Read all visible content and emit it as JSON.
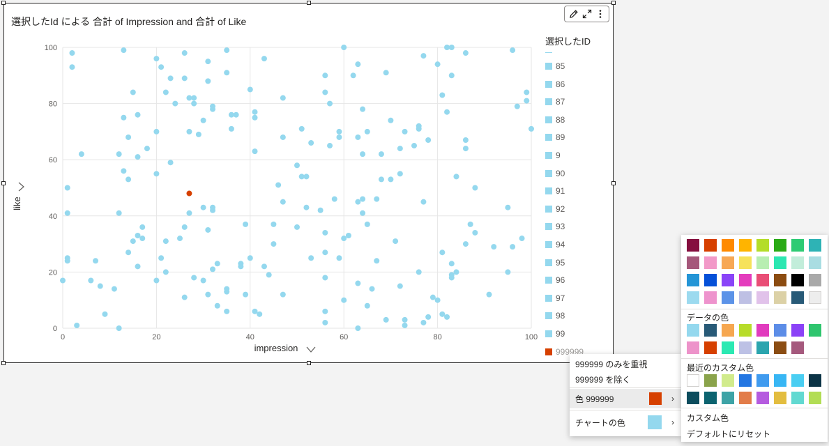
{
  "visual": {
    "title": "選択したId による 合計 of Impression and 合計 of Like",
    "toolbar": {
      "edit_icon": "pencil-icon",
      "focus_icon": "expand-icon",
      "more_icon": "more-icon"
    }
  },
  "axes": {
    "x_title": "impression",
    "y_title": "like",
    "x_ticks": [
      "0",
      "20",
      "40",
      "60",
      "80",
      "100"
    ],
    "y_ticks": [
      "0",
      "20",
      "40",
      "60",
      "80",
      "100"
    ]
  },
  "chart_data": {
    "type": "scatter",
    "title": "選択したId による 合計 of Impression and 合計 of Like",
    "xlabel": "impression",
    "ylabel": "like",
    "xlim": [
      0,
      100
    ],
    "ylim": [
      0,
      100
    ],
    "grid": true,
    "legend_position": "right",
    "default_color": "#94D8EE",
    "highlight_color": "#D64000",
    "highlight_point": {
      "x": 27,
      "y": 48
    },
    "points": [
      [
        0,
        17
      ],
      [
        1,
        50
      ],
      [
        1,
        41
      ],
      [
        1,
        25
      ],
      [
        1,
        24
      ],
      [
        2,
        98
      ],
      [
        2,
        93
      ],
      [
        3,
        1
      ],
      [
        4,
        62
      ],
      [
        6,
        17
      ],
      [
        7,
        24
      ],
      [
        8,
        15
      ],
      [
        9,
        5
      ],
      [
        11,
        14
      ],
      [
        12,
        62
      ],
      [
        12,
        41
      ],
      [
        12,
        0
      ],
      [
        13,
        99
      ],
      [
        13,
        75
      ],
      [
        13,
        56
      ],
      [
        14,
        68
      ],
      [
        14,
        53
      ],
      [
        14,
        27
      ],
      [
        15,
        84
      ],
      [
        15,
        31
      ],
      [
        16,
        76
      ],
      [
        16,
        61
      ],
      [
        16,
        33
      ],
      [
        16,
        22
      ],
      [
        17,
        36
      ],
      [
        17,
        32
      ],
      [
        18,
        64
      ],
      [
        20,
        96
      ],
      [
        20,
        70
      ],
      [
        20,
        55
      ],
      [
        20,
        17
      ],
      [
        21,
        93
      ],
      [
        21,
        25
      ],
      [
        22,
        84
      ],
      [
        22,
        31
      ],
      [
        22,
        20
      ],
      [
        23,
        89
      ],
      [
        23,
        59
      ],
      [
        24,
        80
      ],
      [
        25,
        32
      ],
      [
        26,
        98
      ],
      [
        26,
        89
      ],
      [
        26,
        36
      ],
      [
        26,
        11
      ],
      [
        27,
        82
      ],
      [
        27,
        70
      ],
      [
        27,
        41
      ],
      [
        28,
        82
      ],
      [
        28,
        80
      ],
      [
        28,
        18
      ],
      [
        29,
        69
      ],
      [
        30,
        74
      ],
      [
        30,
        43
      ],
      [
        30,
        17
      ],
      [
        31,
        95
      ],
      [
        31,
        88
      ],
      [
        31,
        35
      ],
      [
        31,
        12
      ],
      [
        32,
        79
      ],
      [
        32,
        78
      ],
      [
        32,
        43
      ],
      [
        32,
        42
      ],
      [
        32,
        21
      ],
      [
        33,
        23
      ],
      [
        33,
        8
      ],
      [
        35,
        99
      ],
      [
        35,
        91
      ],
      [
        35,
        14
      ],
      [
        35,
        13
      ],
      [
        35,
        6
      ],
      [
        36,
        76
      ],
      [
        36,
        71
      ],
      [
        37,
        76
      ],
      [
        38,
        23
      ],
      [
        38,
        22
      ],
      [
        39,
        37
      ],
      [
        39,
        12
      ],
      [
        40,
        85
      ],
      [
        40,
        25
      ],
      [
        41,
        77
      ],
      [
        41,
        75
      ],
      [
        41,
        63
      ],
      [
        41,
        6
      ],
      [
        42,
        5
      ],
      [
        43,
        96
      ],
      [
        43,
        22
      ],
      [
        44,
        19
      ],
      [
        45,
        37
      ],
      [
        45,
        30
      ],
      [
        46,
        51
      ],
      [
        47,
        82
      ],
      [
        47,
        68
      ],
      [
        47,
        45
      ],
      [
        47,
        12
      ],
      [
        50,
        58
      ],
      [
        50,
        36
      ],
      [
        51,
        71
      ],
      [
        51,
        54
      ],
      [
        52,
        54
      ],
      [
        52,
        43
      ],
      [
        53,
        66
      ],
      [
        53,
        25
      ],
      [
        55,
        42
      ],
      [
        56,
        90
      ],
      [
        56,
        84
      ],
      [
        56,
        34
      ],
      [
        56,
        27
      ],
      [
        56,
        18
      ],
      [
        56,
        6
      ],
      [
        56,
        2
      ],
      [
        57,
        80
      ],
      [
        57,
        65
      ],
      [
        58,
        46
      ],
      [
        59,
        70
      ],
      [
        59,
        68
      ],
      [
        59,
        25
      ],
      [
        60,
        100
      ],
      [
        60,
        32
      ],
      [
        60,
        10
      ],
      [
        61,
        33
      ],
      [
        62,
        90
      ],
      [
        63,
        94
      ],
      [
        63,
        68
      ],
      [
        63,
        45
      ],
      [
        63,
        16
      ],
      [
        63,
        0
      ],
      [
        64,
        78
      ],
      [
        64,
        62
      ],
      [
        64,
        46
      ],
      [
        64,
        41
      ],
      [
        65,
        70
      ],
      [
        65,
        37
      ],
      [
        65,
        8
      ],
      [
        66,
        14
      ],
      [
        67,
        46
      ],
      [
        67,
        24
      ],
      [
        68,
        62
      ],
      [
        68,
        53
      ],
      [
        69,
        91
      ],
      [
        69,
        3
      ],
      [
        70,
        74
      ],
      [
        70,
        53
      ],
      [
        71,
        31
      ],
      [
        72,
        64
      ],
      [
        72,
        55
      ],
      [
        72,
        15
      ],
      [
        73,
        70
      ],
      [
        73,
        3
      ],
      [
        73,
        1
      ],
      [
        75,
        65
      ],
      [
        76,
        72
      ],
      [
        76,
        71
      ],
      [
        76,
        20
      ],
      [
        77,
        97
      ],
      [
        77,
        45
      ],
      [
        77,
        2
      ],
      [
        78,
        67
      ],
      [
        78,
        4
      ],
      [
        79,
        11
      ],
      [
        80,
        94
      ],
      [
        80,
        10
      ],
      [
        81,
        83
      ],
      [
        81,
        27
      ],
      [
        81,
        5
      ],
      [
        82,
        100
      ],
      [
        82,
        77
      ],
      [
        82,
        4
      ],
      [
        83,
        100
      ],
      [
        83,
        90
      ],
      [
        83,
        23
      ],
      [
        83,
        19
      ],
      [
        83,
        18
      ],
      [
        84,
        54
      ],
      [
        84,
        20
      ],
      [
        86,
        98
      ],
      [
        86,
        67
      ],
      [
        86,
        64
      ],
      [
        86,
        30
      ],
      [
        87,
        37
      ],
      [
        88,
        50
      ],
      [
        88,
        34
      ],
      [
        91,
        12
      ],
      [
        92,
        29
      ],
      [
        95,
        43
      ],
      [
        95,
        20
      ],
      [
        96,
        99
      ],
      [
        96,
        29
      ],
      [
        97,
        79
      ],
      [
        98,
        32
      ],
      [
        99,
        84
      ],
      [
        99,
        81
      ],
      [
        100,
        71
      ]
    ]
  },
  "legend": {
    "title": "選択したID",
    "items": [
      {
        "label": "85",
        "color": "#94D8EE"
      },
      {
        "label": "86",
        "color": "#94D8EE"
      },
      {
        "label": "87",
        "color": "#94D8EE"
      },
      {
        "label": "88",
        "color": "#94D8EE"
      },
      {
        "label": "89",
        "color": "#94D8EE"
      },
      {
        "label": "9",
        "color": "#94D8EE"
      },
      {
        "label": "90",
        "color": "#94D8EE"
      },
      {
        "label": "91",
        "color": "#94D8EE"
      },
      {
        "label": "92",
        "color": "#94D8EE"
      },
      {
        "label": "93",
        "color": "#94D8EE"
      },
      {
        "label": "94",
        "color": "#94D8EE"
      },
      {
        "label": "95",
        "color": "#94D8EE"
      },
      {
        "label": "96",
        "color": "#94D8EE"
      },
      {
        "label": "97",
        "color": "#94D8EE"
      },
      {
        "label": "98",
        "color": "#94D8EE"
      },
      {
        "label": "99",
        "color": "#94D8EE"
      },
      {
        "label": "999999",
        "color": "#D64000"
      }
    ]
  },
  "context_menu": {
    "include_label": "999999 のみを重視",
    "exclude_label": "999999 を除く",
    "color_label": "色 999999",
    "color_value": "#D64000",
    "chart_color_label": "チャートの色",
    "chart_color_value": "#94D8EE"
  },
  "palette": {
    "theme_colors": [
      [
        "#850F3F",
        "#D64000",
        "#FF8A00",
        "#FFB400",
        "#B4DD2A",
        "#2AAA16",
        "#2ECB74",
        "#2EB3B5"
      ],
      [
        "#A5577A",
        "#F299C8",
        "#F7A855",
        "#F6E25A",
        "#B8EEB2",
        "#2CE7B1",
        "#C2EDDA",
        "#A9DDE2"
      ],
      [
        "#2495D6",
        "#0550D8",
        "#8A44F8",
        "#E43CBD",
        "#E94E76",
        "#8C4C11",
        "#000000",
        "#A9A9A9"
      ],
      [
        "#9CDAEF",
        "#EE93CD",
        "#5C93E8",
        "#BEC0E4",
        "#E1C2EA",
        "#DCD1A6",
        "#285A77",
        "#EDEDED"
      ]
    ],
    "data_colors_label": "データの色",
    "data_colors": [
      [
        "#94D8EE",
        "#285A77",
        "#F6A750",
        "#B7DC2A",
        "#E13BBE",
        "#5C8DE7",
        "#8B42F7",
        "#2FC56E"
      ],
      [
        "#ED93CA",
        "#D64000",
        "#2BE9B2",
        "#BDC1E5",
        "#2BA5AE",
        "#8B4D13",
        "#A5597D"
      ]
    ],
    "recent_label": "最近のカスタム色",
    "recent_colors": [
      [
        "#FFFFFF",
        "#8AA34B",
        "#D1EB8C",
        "#2376E2",
        "#409BEF",
        "#38B6F4",
        "#4ACEF2",
        "#0C3446"
      ],
      [
        "#0C4C5D",
        "#0C636F",
        "#3DA3A6",
        "#E27C49",
        "#B55BDF",
        "#E3BD3F",
        "#62D9D1",
        "#B2DD55"
      ]
    ],
    "custom_label": "カスタム色",
    "reset_label": "デフォルトにリセット"
  }
}
